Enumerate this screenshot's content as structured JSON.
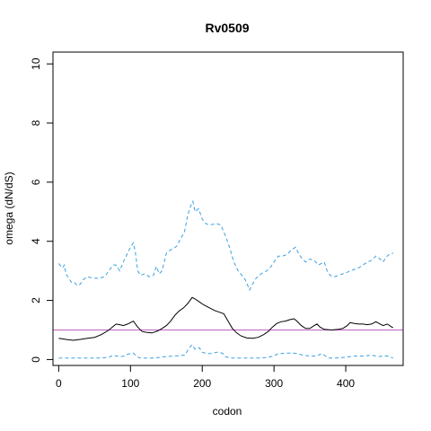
{
  "chart_data": {
    "type": "line",
    "title": "Rv0509",
    "xlabel": "codon",
    "ylabel": "omega (dN/dS)",
    "xlim": [
      -8,
      480
    ],
    "ylim": [
      -0.2,
      10.4
    ],
    "x_ticks": [
      0,
      100,
      200,
      300,
      400
    ],
    "y_ticks": [
      0,
      2,
      4,
      6,
      8,
      10
    ],
    "grid": false,
    "reference_line": {
      "y": 1,
      "color": "#c060c0"
    },
    "series": [
      {
        "style": "dashed",
        "color": "#3aa0e0",
        "points": [
          [
            0,
            3.25
          ],
          [
            5,
            3.1
          ],
          [
            8,
            3.2
          ],
          [
            10,
            2.9
          ],
          [
            14,
            2.75
          ],
          [
            18,
            2.6
          ],
          [
            22,
            2.6
          ],
          [
            26,
            2.5
          ],
          [
            30,
            2.55
          ],
          [
            34,
            2.7
          ],
          [
            40,
            2.8
          ],
          [
            48,
            2.75
          ],
          [
            56,
            2.75
          ],
          [
            64,
            2.8
          ],
          [
            70,
            3.0
          ],
          [
            76,
            3.2
          ],
          [
            80,
            3.2
          ],
          [
            85,
            3.0
          ],
          [
            90,
            3.3
          ],
          [
            96,
            3.6
          ],
          [
            100,
            3.8
          ],
          [
            104,
            3.95
          ],
          [
            107,
            3.6
          ],
          [
            110,
            3.0
          ],
          [
            114,
            2.85
          ],
          [
            120,
            2.9
          ],
          [
            126,
            2.8
          ],
          [
            132,
            2.85
          ],
          [
            136,
            3.15
          ],
          [
            140,
            2.9
          ],
          [
            144,
            3.0
          ],
          [
            150,
            3.6
          ],
          [
            155,
            3.7
          ],
          [
            160,
            3.75
          ],
          [
            165,
            3.85
          ],
          [
            170,
            4.1
          ],
          [
            175,
            4.3
          ],
          [
            180,
            4.9
          ],
          [
            184,
            5.2
          ],
          [
            187,
            5.35
          ],
          [
            190,
            5.0
          ],
          [
            195,
            5.1
          ],
          [
            200,
            4.75
          ],
          [
            205,
            4.6
          ],
          [
            210,
            4.55
          ],
          [
            220,
            4.6
          ],
          [
            226,
            4.55
          ],
          [
            232,
            4.2
          ],
          [
            238,
            3.8
          ],
          [
            244,
            3.3
          ],
          [
            250,
            3.0
          ],
          [
            255,
            2.85
          ],
          [
            260,
            2.7
          ],
          [
            266,
            2.35
          ],
          [
            270,
            2.55
          ],
          [
            275,
            2.75
          ],
          [
            282,
            2.9
          ],
          [
            290,
            3.0
          ],
          [
            296,
            3.15
          ],
          [
            300,
            3.3
          ],
          [
            306,
            3.5
          ],
          [
            312,
            3.5
          ],
          [
            318,
            3.55
          ],
          [
            324,
            3.7
          ],
          [
            330,
            3.8
          ],
          [
            334,
            3.6
          ],
          [
            338,
            3.45
          ],
          [
            344,
            3.3
          ],
          [
            350,
            3.4
          ],
          [
            356,
            3.35
          ],
          [
            362,
            3.2
          ],
          [
            366,
            3.25
          ],
          [
            370,
            3.3
          ],
          [
            374,
            3.0
          ],
          [
            378,
            2.85
          ],
          [
            384,
            2.8
          ],
          [
            390,
            2.85
          ],
          [
            396,
            2.9
          ],
          [
            402,
            2.95
          ],
          [
            406,
            3.0
          ],
          [
            412,
            3.05
          ],
          [
            418,
            3.1
          ],
          [
            424,
            3.2
          ],
          [
            430,
            3.3
          ],
          [
            436,
            3.35
          ],
          [
            442,
            3.5
          ],
          [
            448,
            3.4
          ],
          [
            452,
            3.3
          ],
          [
            456,
            3.45
          ],
          [
            460,
            3.55
          ],
          [
            466,
            3.6
          ]
        ]
      },
      {
        "style": "solid",
        "color": "#000000",
        "points": [
          [
            0,
            0.72
          ],
          [
            10,
            0.68
          ],
          [
            20,
            0.65
          ],
          [
            30,
            0.68
          ],
          [
            40,
            0.72
          ],
          [
            50,
            0.75
          ],
          [
            60,
            0.85
          ],
          [
            70,
            1.0
          ],
          [
            76,
            1.12
          ],
          [
            80,
            1.2
          ],
          [
            85,
            1.18
          ],
          [
            90,
            1.15
          ],
          [
            96,
            1.2
          ],
          [
            100,
            1.25
          ],
          [
            104,
            1.3
          ],
          [
            110,
            1.1
          ],
          [
            116,
            0.95
          ],
          [
            122,
            0.92
          ],
          [
            130,
            0.9
          ],
          [
            138,
            0.97
          ],
          [
            144,
            1.05
          ],
          [
            150,
            1.15
          ],
          [
            156,
            1.3
          ],
          [
            162,
            1.5
          ],
          [
            168,
            1.65
          ],
          [
            174,
            1.75
          ],
          [
            180,
            1.9
          ],
          [
            186,
            2.1
          ],
          [
            190,
            2.05
          ],
          [
            196,
            1.95
          ],
          [
            202,
            1.85
          ],
          [
            210,
            1.75
          ],
          [
            218,
            1.65
          ],
          [
            224,
            1.6
          ],
          [
            230,
            1.55
          ],
          [
            236,
            1.3
          ],
          [
            242,
            1.05
          ],
          [
            248,
            0.9
          ],
          [
            254,
            0.8
          ],
          [
            262,
            0.73
          ],
          [
            270,
            0.72
          ],
          [
            278,
            0.75
          ],
          [
            286,
            0.85
          ],
          [
            292,
            0.95
          ],
          [
            298,
            1.1
          ],
          [
            304,
            1.22
          ],
          [
            310,
            1.28
          ],
          [
            316,
            1.3
          ],
          [
            322,
            1.35
          ],
          [
            328,
            1.38
          ],
          [
            332,
            1.3
          ],
          [
            338,
            1.15
          ],
          [
            344,
            1.05
          ],
          [
            350,
            1.05
          ],
          [
            356,
            1.15
          ],
          [
            360,
            1.2
          ],
          [
            364,
            1.1
          ],
          [
            370,
            1.02
          ],
          [
            380,
            1.0
          ],
          [
            390,
            1.02
          ],
          [
            396,
            1.05
          ],
          [
            402,
            1.15
          ],
          [
            406,
            1.25
          ],
          [
            412,
            1.22
          ],
          [
            418,
            1.2
          ],
          [
            424,
            1.2
          ],
          [
            430,
            1.18
          ],
          [
            436,
            1.2
          ],
          [
            442,
            1.28
          ],
          [
            448,
            1.2
          ],
          [
            452,
            1.15
          ],
          [
            458,
            1.2
          ],
          [
            464,
            1.1
          ],
          [
            466,
            1.08
          ]
        ]
      },
      {
        "style": "dashed",
        "color": "#3aa0e0",
        "points": [
          [
            0,
            0.05
          ],
          [
            20,
            0.05
          ],
          [
            40,
            0.05
          ],
          [
            60,
            0.05
          ],
          [
            70,
            0.08
          ],
          [
            76,
            0.15
          ],
          [
            80,
            0.12
          ],
          [
            86,
            0.1
          ],
          [
            92,
            0.12
          ],
          [
            96,
            0.18
          ],
          [
            100,
            0.2
          ],
          [
            104,
            0.22
          ],
          [
            108,
            0.12
          ],
          [
            112,
            0.06
          ],
          [
            120,
            0.05
          ],
          [
            130,
            0.05
          ],
          [
            140,
            0.07
          ],
          [
            150,
            0.1
          ],
          [
            160,
            0.12
          ],
          [
            168,
            0.13
          ],
          [
            176,
            0.15
          ],
          [
            182,
            0.4
          ],
          [
            186,
            0.5
          ],
          [
            190,
            0.35
          ],
          [
            196,
            0.4
          ],
          [
            200,
            0.25
          ],
          [
            206,
            0.2
          ],
          [
            212,
            0.2
          ],
          [
            220,
            0.25
          ],
          [
            228,
            0.22
          ],
          [
            232,
            0.1
          ],
          [
            240,
            0.05
          ],
          [
            250,
            0.05
          ],
          [
            260,
            0.05
          ],
          [
            270,
            0.05
          ],
          [
            280,
            0.05
          ],
          [
            290,
            0.07
          ],
          [
            300,
            0.12
          ],
          [
            306,
            0.2
          ],
          [
            310,
            0.2
          ],
          [
            318,
            0.22
          ],
          [
            326,
            0.22
          ],
          [
            332,
            0.2
          ],
          [
            340,
            0.15
          ],
          [
            350,
            0.12
          ],
          [
            360,
            0.12
          ],
          [
            366,
            0.2
          ],
          [
            370,
            0.15
          ],
          [
            376,
            0.05
          ],
          [
            386,
            0.05
          ],
          [
            396,
            0.07
          ],
          [
            406,
            0.1
          ],
          [
            416,
            0.12
          ],
          [
            426,
            0.12
          ],
          [
            436,
            0.15
          ],
          [
            446,
            0.1
          ],
          [
            452,
            0.12
          ],
          [
            458,
            0.12
          ],
          [
            466,
            0.05
          ]
        ]
      }
    ]
  }
}
